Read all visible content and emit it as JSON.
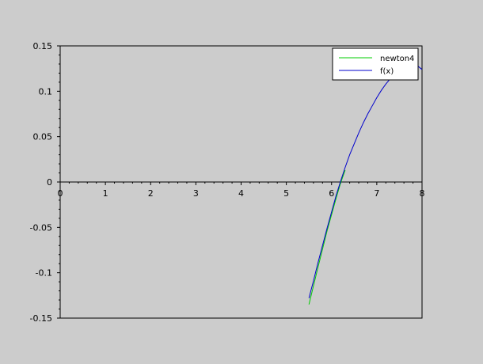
{
  "chart_data": {
    "type": "line",
    "xlim": [
      0,
      8
    ],
    "ylim": [
      -0.15,
      0.15
    ],
    "x_ticks": [
      "0",
      "1",
      "2",
      "3",
      "4",
      "5",
      "6",
      "7",
      "8"
    ],
    "y_ticks": [
      "0.15",
      "0.1",
      "0.05",
      "0",
      "-0.05",
      "-0.1",
      "-0.15"
    ],
    "x_axis_position": "y = 0",
    "legend_position": "top-right",
    "grid": false,
    "series": [
      {
        "name": "newton4",
        "color": "#00cc00",
        "x": [
          5.5,
          5.7,
          5.9,
          6.1,
          6.2,
          6.3
        ],
        "y": [
          -0.135,
          -0.094,
          -0.054,
          -0.018,
          -0.001,
          0.013
        ]
      },
      {
        "name": "f(x)",
        "color": "#0000cc",
        "x": [
          5.5,
          5.6,
          5.7,
          5.8,
          5.9,
          6.0,
          6.1,
          6.2,
          6.3,
          6.4,
          6.5,
          6.6,
          6.7,
          6.8,
          6.9,
          7.0,
          7.1,
          7.2,
          7.3,
          7.4,
          7.5,
          7.6,
          7.7,
          7.8,
          7.9,
          8.0
        ],
        "y": [
          -0.128,
          -0.109,
          -0.089,
          -0.07,
          -0.051,
          -0.033,
          -0.015,
          0.001,
          0.016,
          0.03,
          0.042,
          0.054,
          0.065,
          0.075,
          0.084,
          0.093,
          0.101,
          0.108,
          0.114,
          0.119,
          0.124,
          0.127,
          0.129,
          0.13,
          0.128,
          0.124
        ]
      }
    ]
  }
}
